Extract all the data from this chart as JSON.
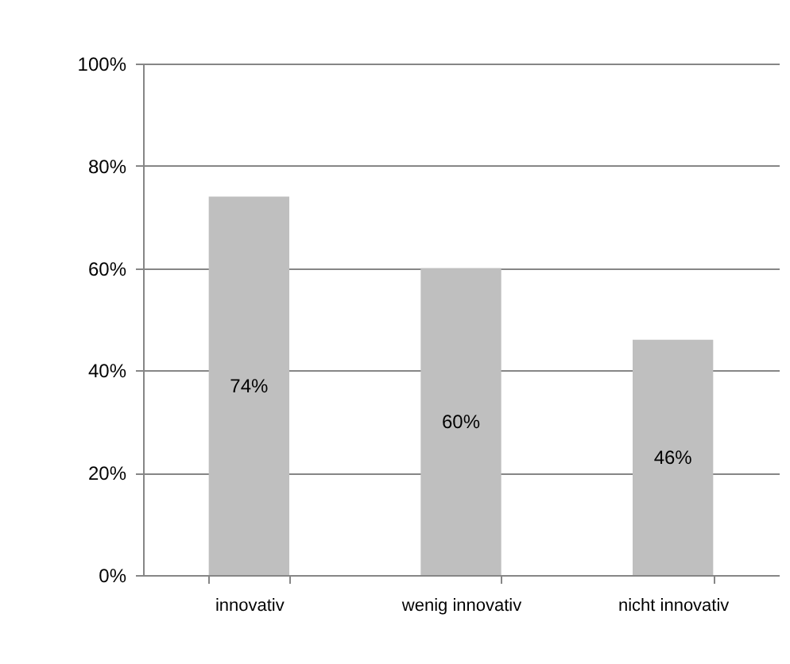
{
  "chart_data": {
    "type": "bar",
    "categories": [
      "innovativ",
      "wenig innovativ",
      "nicht innovativ"
    ],
    "values": [
      74,
      60,
      46
    ],
    "value_labels": [
      "74%",
      "60%",
      "46%"
    ],
    "color": "#bfbfbf",
    "ylim": [
      0,
      100
    ],
    "yticks": [
      {
        "value": 0,
        "label": "0%"
      },
      {
        "value": 20,
        "label": "20%"
      },
      {
        "value": 40,
        "label": "40%"
      },
      {
        "value": 60,
        "label": "60%"
      },
      {
        "value": 80,
        "label": "80%"
      },
      {
        "value": 100,
        "label": "100%"
      }
    ],
    "grid": "y"
  }
}
